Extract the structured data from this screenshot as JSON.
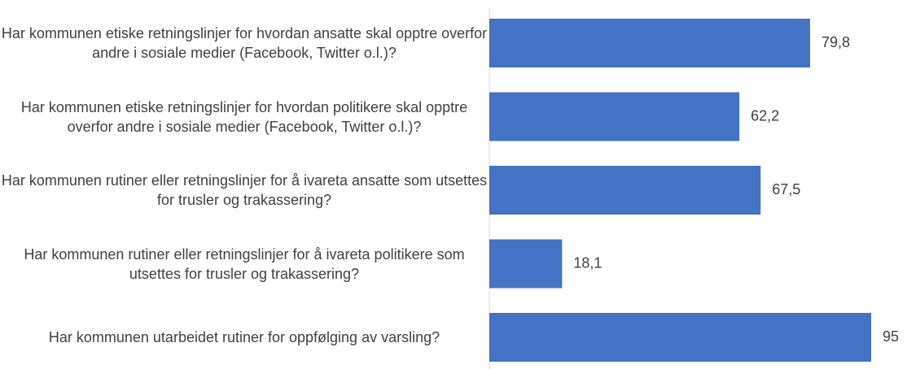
{
  "chart_data": {
    "type": "bar",
    "orientation": "horizontal",
    "categories": [
      "Har kommunen etiske retningslinjer for hvordan ansatte skal opptre overfor andre i sosiale medier (Facebook, Twitter o.l.)?",
      "Har kommunen etiske retningslinjer for hvordan politikere skal opptre overfor andre i sosiale medier (Facebook, Twitter o.l.)?",
      "Har kommunen rutiner eller retningslinjer for å ivareta ansatte som utsettes for trusler og trakassering?",
      "Har kommunen rutiner eller retningslinjer for å ivareta politikere som utsettes for trusler og trakassering?",
      "Har kommunen utarbeidet rutiner for oppfølging av varsling?"
    ],
    "values": [
      79.8,
      62.2,
      67.5,
      18.1,
      95
    ],
    "value_labels": [
      "79,8",
      "62,2",
      "67,5",
      "18,1",
      "95"
    ],
    "color": "#4472c4",
    "xlim": [
      0,
      95
    ]
  }
}
